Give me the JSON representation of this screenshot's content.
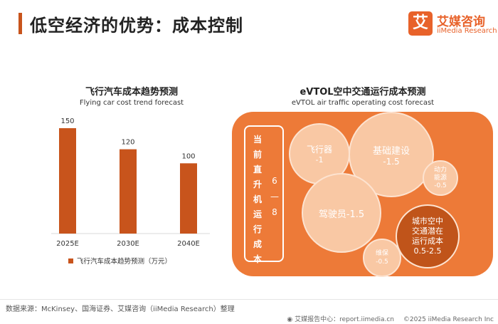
{
  "header": {
    "title": "低空经济的优势：成本控制",
    "logo_mark": "艾",
    "logo_cn": "艾媒咨询",
    "logo_en": "iiMedia Research"
  },
  "chart_data": [
    {
      "type": "bar",
      "title": "飞行汽车成本趋势预测",
      "subtitle": "Flying car cost trend forecast",
      "categories": [
        "2025E",
        "2030E",
        "2040E"
      ],
      "values": [
        150,
        120,
        100
      ],
      "data_labels": [
        "150",
        "120",
        "100"
      ],
      "legend": [
        "飞行汽车成本趋势预测（万元）"
      ],
      "legend_position": "bottom",
      "ylim": [
        0,
        150
      ],
      "color": "#c8541c",
      "grid": false
    },
    {
      "type": "bubble",
      "title": "eVTOL空中交通运行成本预测",
      "subtitle": "eVTOL air traffic operating cost forecast",
      "current_cost_label": "当前直升机运行成本",
      "current_cost_range": "6—8",
      "bubbles": [
        {
          "name": "飞行器",
          "value": "-1"
        },
        {
          "name": "基础建设",
          "value": "-1.5"
        },
        {
          "name": "动力能源",
          "value": "-0.5"
        },
        {
          "name": "驾驶员",
          "value": "-1.5"
        },
        {
          "name": "维保",
          "value": "-0.5"
        },
        {
          "name": "城市空中交通潜在运行成本",
          "value": "0.5-2.5"
        }
      ]
    }
  ],
  "bubble_text": {
    "aircraft": "飞行器",
    "aircraft_val": "-1",
    "infra": "基础建设",
    "infra_val": "-1.5",
    "energy_l1": "动力",
    "energy_l2": "能源",
    "energy_val": "-0.5",
    "pilot": "驾驶员-1.5",
    "maint": "维保",
    "maint_val": "-0.5",
    "uam_l1": "城市空中",
    "uam_l2": "交通潜在",
    "uam_l3": "运行成本",
    "uam_val": "0.5-2.5"
  },
  "footer": {
    "source": "数据来源：McKinsey、国海证券、艾媒咨询（iiMedia Research）整理",
    "center": "艾媒报告中心：report.iimedia.cn",
    "copyright": "©2025  iiMedia Research Inc"
  }
}
